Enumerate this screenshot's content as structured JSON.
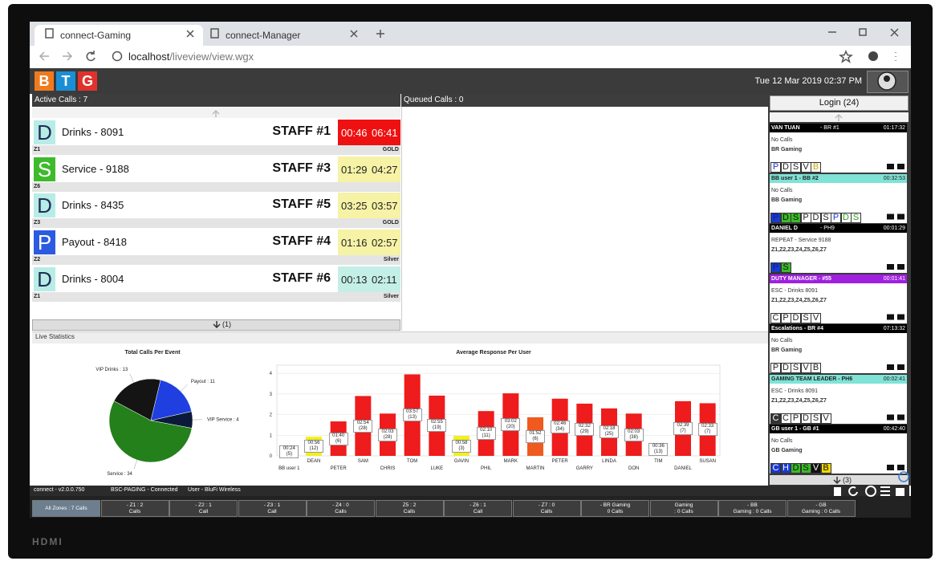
{
  "browser": {
    "tabs": [
      "connect-Gaming",
      "connect-Manager"
    ],
    "url_host": "localhost",
    "url_path": "/liveview/view.wgx"
  },
  "header": {
    "logo": [
      "B",
      "T",
      "G"
    ],
    "logo_colors": [
      "#f07a1f",
      "#1a8fd6",
      "#e0322c"
    ],
    "datetime": "Tue 12 Mar 2019 02:37 PM"
  },
  "active_calls": {
    "title": "Active Calls : 7",
    "calls": [
      {
        "icon": "D",
        "icon_bg": "#b8ece6",
        "icon_fg": "#1f2f55",
        "name": "Drinks - 8091",
        "staff": "STAFF #1",
        "times": [
          "00:46",
          "06:41"
        ],
        "time_bg": "#ee1111",
        "time_fg": "#ffffff",
        "zone": "Z1",
        "tier": "GOLD"
      },
      {
        "icon": "S",
        "icon_bg": "#3dbb2b",
        "icon_fg": "#ffffff",
        "name": "Service - 9188",
        "staff": "STAFF #3",
        "times": [
          "01:29",
          "04:27"
        ],
        "time_bg": "#f6f2a6",
        "time_fg": "#222222",
        "zone": "Z6"
      },
      {
        "icon": "D",
        "icon_bg": "#b8ece6",
        "icon_fg": "#1f2f55",
        "name": "Drinks - 8435",
        "staff": "STAFF #5",
        "times": [
          "03:25",
          "03:57"
        ],
        "time_bg": "#f6f2a6",
        "time_fg": "#222222",
        "zone": "Z3",
        "tier": "GOLD"
      },
      {
        "icon": "P",
        "icon_bg": "#2b5be0",
        "icon_fg": "#ffffff",
        "name": "Payout - 8418",
        "staff": "STAFF #4",
        "times": [
          "01:16",
          "02:57"
        ],
        "time_bg": "#f6f2a6",
        "time_fg": "#222222",
        "zone": "Z2",
        "tier": "Silver"
      },
      {
        "icon": "D",
        "icon_bg": "#b8ece6",
        "icon_fg": "#1f2f55",
        "name": "Drinks - 8004",
        "staff": "STAFF #6",
        "times": [
          "00:13",
          "02:11"
        ],
        "time_bg": "#c3efe6",
        "time_fg": "#222222",
        "zone": "Z1",
        "tier": "Silver"
      }
    ],
    "more": "(1)"
  },
  "queued_calls": {
    "title": "Queued Calls : 0"
  },
  "live_statistics": {
    "title": "Live Statistics",
    "pie_chart": {
      "type": "pie",
      "title": "Total Calls Per Event",
      "labels": [
        "VIP Drinks : 13",
        "Payout : 11",
        "VIP Service : 4",
        "Service : 34"
      ],
      "values": [
        13,
        11,
        4,
        34
      ],
      "colors": [
        "#141414",
        "#1f3fe0",
        "#0b1a3a",
        "#24801a"
      ]
    },
    "bar_chart": {
      "type": "bar",
      "title": "Average Response Per User",
      "categories": [
        "BB user 1",
        "DEAN",
        "PETER",
        "SAM",
        "CHRIS",
        "TOM",
        "LUKE",
        "GAVIN",
        "PHIL",
        "MARK",
        "MARTIN",
        "PETER",
        "GARRY",
        "LINDA",
        "DON",
        "TIM",
        "DANIEL",
        "SUSAN"
      ],
      "values": [
        0.4,
        0.93,
        1.67,
        2.9,
        2.05,
        3.95,
        2.92,
        0.97,
        2.17,
        3.03,
        1.87,
        2.77,
        2.53,
        2.3,
        2.05,
        0.6,
        2.65,
        2.55
      ],
      "value_labels": [
        "00:24 (5)",
        "00:56 (12)",
        "01:40 (6)",
        "02:54 (28)",
        "02:03 (28)",
        "03:57 (13)",
        "02:55 (19)",
        "00:58 (3)",
        "02:10 (11)",
        "03:02 (20)",
        "01:52 (6)",
        "02:46 (34)",
        "02:32 (29)",
        "02:18 (25)",
        "02:03 (38)",
        "00:36 (13)",
        "02:39 (7)",
        "02:33 (7)"
      ],
      "colors": [
        "#7ddc1f",
        "#f0f020",
        "#ee1c1c",
        "#ee1c1c",
        "#ee1c1c",
        "#ee1c1c",
        "#ee1c1c",
        "#f0f020",
        "#ee1c1c",
        "#ee1c1c",
        "#f05a1e",
        "#ee1c1c",
        "#ee1c1c",
        "#ee1c1c",
        "#ee1c1c",
        "#f0f020",
        "#ee1c1c",
        "#ee1c1c"
      ],
      "ylim": [
        0,
        4.2
      ],
      "yticks": [
        0,
        1,
        2,
        3,
        4
      ],
      "grid": true
    }
  },
  "sidebar": {
    "login": "Login (24)",
    "users": [
      {
        "name": "VAN TUAN",
        "detail": "- BR #1",
        "time": "01:17:32",
        "header_bg": "#000000",
        "header_fg": "#ffffff",
        "lines": [
          "No Calls",
          "BR Gaming"
        ],
        "badges": [
          {
            "text": "P",
            "bg": "#ffffff",
            "fg": "#1a3ad0"
          },
          {
            "text": "D",
            "bg": "#ffffff",
            "fg": "#222222"
          },
          {
            "text": "S",
            "bg": "#ffffff",
            "fg": "#222222"
          },
          {
            "text": "V",
            "bg": "#ffffff",
            "fg": "#222222"
          },
          {
            "text": "B",
            "bg": "#ffffff",
            "fg": "#c8a800"
          }
        ]
      },
      {
        "name": "BB user 1 - BB #2",
        "time": "00:32:53",
        "header_bg": "#7fe3d6",
        "header_fg": "#222222",
        "lines": [
          "No Calls",
          "BB Gaming"
        ],
        "badges": [
          {
            "text": "P",
            "bg": "#1a3ad0",
            "fg": "#0b1f80"
          },
          {
            "text": "D",
            "bg": "#3bbb2a",
            "fg": "#111111"
          },
          {
            "text": "S",
            "bg": "#3bbb2a",
            "fg": "#111111"
          },
          {
            "text": "P",
            "bg": "#ffffff",
            "fg": "#222222"
          },
          {
            "text": "D",
            "bg": "#ffffff",
            "fg": "#222222"
          },
          {
            "text": "S",
            "bg": "#ffffff",
            "fg": "#222222"
          },
          {
            "text": "P",
            "bg": "#ffffff",
            "fg": "#1a3ad0"
          },
          {
            "text": "D",
            "bg": "#ffffff",
            "fg": "#2a9a1a"
          },
          {
            "text": "S",
            "bg": "#ffffff",
            "fg": "#2a9a1a"
          }
        ]
      },
      {
        "name": "DANIEL D",
        "detail": "- PH9",
        "time": "00:01:29",
        "header_bg": "#000000",
        "header_fg": "#ffffff",
        "lines": [
          "REPEAT - Service 9188",
          "Z1,Z2,Z3,Z4,Z5,Z6,Z7"
        ],
        "badges": [
          {
            "text": "P",
            "bg": "#1a3ad0",
            "fg": "#0b1f80"
          },
          {
            "text": "S",
            "bg": "#3bbb2a",
            "fg": "#111111"
          }
        ]
      },
      {
        "name": "DUTY MANAGER - #55",
        "time": "00:01:41",
        "header_bg": "#a020e0",
        "header_fg": "#ffffff",
        "lines": [
          "ESC - Drinks 8091",
          "Z1,Z2,Z3,Z4,Z5,Z6,Z7"
        ],
        "badges": [
          {
            "text": "C",
            "bg": "#ffffff",
            "fg": "#222222"
          },
          {
            "text": "P",
            "bg": "#ffffff",
            "fg": "#222222"
          },
          {
            "text": "D",
            "bg": "#ffffff",
            "fg": "#222222"
          },
          {
            "text": "S",
            "bg": "#ffffff",
            "fg": "#222222"
          },
          {
            "text": "V",
            "bg": "#ffffff",
            "fg": "#222222"
          }
        ]
      },
      {
        "name": "Escalations - BR #4",
        "time": "07:13:32",
        "header_bg": "#000000",
        "header_fg": "#ffffff",
        "lines": [
          "No Calls",
          "BR Gaming"
        ],
        "badges": [
          {
            "text": "P",
            "bg": "#ffffff",
            "fg": "#222222"
          },
          {
            "text": "D",
            "bg": "#ffffff",
            "fg": "#222222"
          },
          {
            "text": "S",
            "bg": "#ffffff",
            "fg": "#222222"
          },
          {
            "text": "V",
            "bg": "#ffffff",
            "fg": "#222222"
          },
          {
            "text": "B",
            "bg": "#ffffff",
            "fg": "#222222"
          }
        ]
      },
      {
        "name": "GAMING TEAM LEADER - PH6",
        "time": "00:02:41",
        "header_bg": "#7fe3d6",
        "header_fg": "#222222",
        "lines": [
          "ESC - Drinks 8091",
          "Z1,Z2,Z3,Z4,Z5,Z6,Z7"
        ],
        "badges": [
          {
            "text": "C",
            "bg": "#333333",
            "fg": "#ffffff"
          },
          {
            "text": "C",
            "bg": "#ffffff",
            "fg": "#222222"
          },
          {
            "text": "P",
            "bg": "#ffffff",
            "fg": "#222222"
          },
          {
            "text": "D",
            "bg": "#ffffff",
            "fg": "#222222"
          },
          {
            "text": "S",
            "bg": "#ffffff",
            "fg": "#222222"
          },
          {
            "text": "V",
            "bg": "#ffffff",
            "fg": "#222222"
          }
        ]
      },
      {
        "name": "GB user 1 - GB #1",
        "time": "00:42:40",
        "header_bg": "#000000",
        "header_fg": "#ffffff",
        "lines": [
          "No Calls",
          "GB Gaming"
        ],
        "badges": [
          {
            "text": "C",
            "bg": "#1a3ad0",
            "fg": "#ffffff"
          },
          {
            "text": "H",
            "bg": "#1a3ad0",
            "fg": "#ffffff"
          },
          {
            "text": "D",
            "bg": "#3bbb2a",
            "fg": "#111111"
          },
          {
            "text": "S",
            "bg": "#3bbb2a",
            "fg": "#111111"
          },
          {
            "text": "V",
            "bg": "#111111",
            "fg": "#ffffff"
          },
          {
            "text": "B",
            "bg": "#f0d800",
            "fg": "#111111"
          }
        ]
      }
    ],
    "more": "(3)"
  },
  "status_bar": [
    "connect - v2.0.0.750",
    "BSC-PAGING - Connected",
    "User - BluFi Wireless"
  ],
  "zone_tabs": [
    {
      "lines": [
        "All Zones : 7 Calls"
      ]
    },
    {
      "lines": [
        "- Z1 : 2",
        "Calls"
      ]
    },
    {
      "lines": [
        "- Z2 : 1",
        "Call"
      ]
    },
    {
      "lines": [
        "- Z3 : 1",
        "Call"
      ]
    },
    {
      "lines": [
        "- Z4 : 0",
        "Calls"
      ]
    },
    {
      "lines": [
        "Z5 : 2",
        "Calls"
      ]
    },
    {
      "lines": [
        "- Z6 : 1",
        "Call"
      ]
    },
    {
      "lines": [
        "- Z7 : 0",
        "Calls"
      ]
    },
    {
      "lines": [
        "- BR Gaming",
        "0 Calls"
      ]
    },
    {
      "lines": [
        "Gaming",
        ": 0 Calls"
      ]
    },
    {
      "lines": [
        "- BB",
        "Gaming : 0 Calls"
      ]
    },
    {
      "lines": [
        "- GB",
        "Gaming : 0 Calls"
      ]
    }
  ],
  "bezel_label": "HDMI"
}
